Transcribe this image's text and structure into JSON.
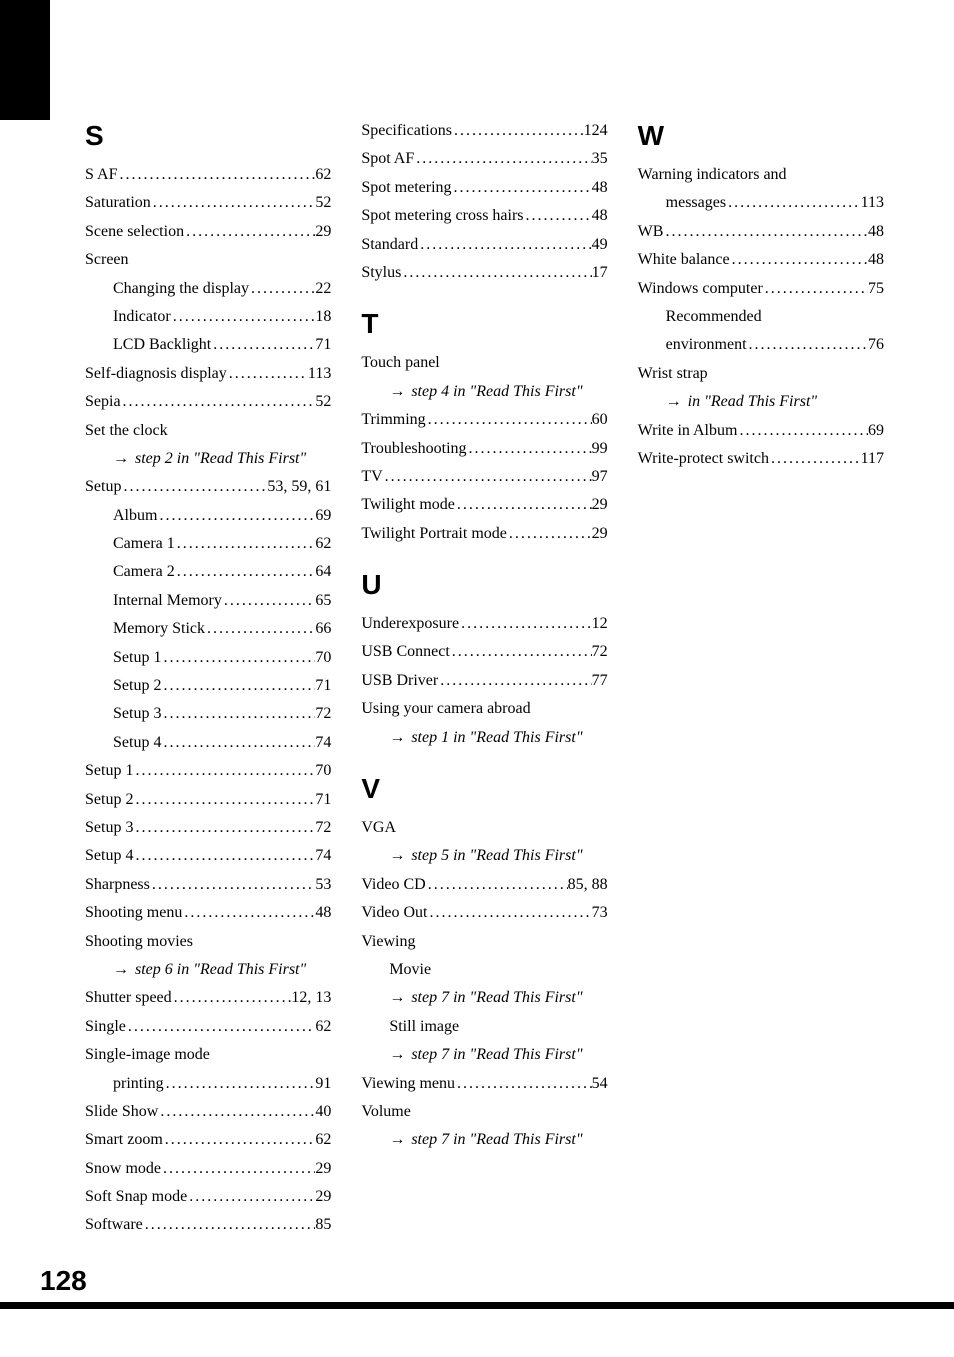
{
  "page_number": "128",
  "columns": [
    {
      "id": "col1",
      "sections": [
        {
          "header": "S",
          "entries": [
            {
              "type": "dot",
              "label": "S AF",
              "page": "62",
              "indent": 0
            },
            {
              "type": "dot",
              "label": "Saturation",
              "page": "52",
              "indent": 0
            },
            {
              "type": "dot",
              "label": "Scene selection",
              "page": "29",
              "indent": 0
            },
            {
              "type": "plain",
              "label": "Screen",
              "indent": 0
            },
            {
              "type": "dot",
              "label": "Changing the display",
              "page": "22",
              "indent": 1
            },
            {
              "type": "dot",
              "label": "Indicator",
              "page": "18",
              "indent": 1
            },
            {
              "type": "dot",
              "label": "LCD Backlight",
              "page": "71",
              "indent": 1
            },
            {
              "type": "dot",
              "label": "Self-diagnosis display",
              "page": "113",
              "indent": 0
            },
            {
              "type": "dot",
              "label": "Sepia",
              "page": "52",
              "indent": 0
            },
            {
              "type": "plain",
              "label": "Set the clock",
              "indent": 0
            },
            {
              "type": "arrow",
              "label": "step 2 in \"Read This First\"",
              "indent": 1
            },
            {
              "type": "dot",
              "label": "Setup",
              "page": "53, 59, 61",
              "indent": 0
            },
            {
              "type": "dot",
              "label": "Album",
              "page": "69",
              "indent": 1
            },
            {
              "type": "dot",
              "label": "Camera 1",
              "page": "62",
              "indent": 1
            },
            {
              "type": "dot",
              "label": "Camera 2",
              "page": "64",
              "indent": 1
            },
            {
              "type": "dot",
              "label": "Internal Memory",
              "page": "65",
              "indent": 1
            },
            {
              "type": "dot",
              "label": "Memory Stick",
              "page": "66",
              "indent": 1
            },
            {
              "type": "dot",
              "label": "Setup 1",
              "page": "70",
              "indent": 1
            },
            {
              "type": "dot",
              "label": "Setup 2",
              "page": "71",
              "indent": 1
            },
            {
              "type": "dot",
              "label": "Setup 3",
              "page": "72",
              "indent": 1
            },
            {
              "type": "dot",
              "label": "Setup 4",
              "page": "74",
              "indent": 1
            },
            {
              "type": "dot",
              "label": "Setup 1",
              "page": "70",
              "indent": 0
            },
            {
              "type": "dot",
              "label": "Setup 2",
              "page": "71",
              "indent": 0
            },
            {
              "type": "dot",
              "label": "Setup 3",
              "page": "72",
              "indent": 0
            },
            {
              "type": "dot",
              "label": "Setup 4",
              "page": "74",
              "indent": 0
            },
            {
              "type": "dot",
              "label": "Sharpness",
              "page": "53",
              "indent": 0
            },
            {
              "type": "dot",
              "label": "Shooting menu",
              "page": "48",
              "indent": 0
            },
            {
              "type": "plain",
              "label": "Shooting movies",
              "indent": 0
            },
            {
              "type": "arrow",
              "label": "step 6 in \"Read This First\"",
              "indent": 1
            },
            {
              "type": "dot",
              "label": "Shutter speed",
              "page": "12, 13",
              "indent": 0
            },
            {
              "type": "dot",
              "label": "Single",
              "page": "62",
              "indent": 0
            },
            {
              "type": "plain",
              "label": "Single-image mode",
              "indent": 0
            },
            {
              "type": "dot",
              "label": "printing",
              "page": "91",
              "indent": 1
            },
            {
              "type": "dot",
              "label": "Slide Show",
              "page": "40",
              "indent": 0
            },
            {
              "type": "dot",
              "label": "Smart zoom",
              "page": "62",
              "indent": 0
            },
            {
              "type": "dot",
              "label": "Snow mode",
              "page": "29",
              "indent": 0
            },
            {
              "type": "dot",
              "label": "Soft Snap mode",
              "page": "29",
              "indent": 0
            },
            {
              "type": "dot",
              "label": "Software",
              "page": "85",
              "indent": 0
            }
          ]
        }
      ]
    },
    {
      "id": "col2",
      "sections": [
        {
          "header": "",
          "entries": [
            {
              "type": "dot",
              "label": "Specifications",
              "page": "124",
              "indent": 0
            },
            {
              "type": "dot",
              "label": "Spot AF",
              "page": "35",
              "indent": 0
            },
            {
              "type": "dot",
              "label": "Spot metering",
              "page": "48",
              "indent": 0
            },
            {
              "type": "dot",
              "label": "Spot metering cross hairs",
              "page": "48",
              "indent": 0
            },
            {
              "type": "dot",
              "label": "Standard",
              "page": "49",
              "indent": 0
            },
            {
              "type": "dot",
              "label": "Stylus",
              "page": "17",
              "indent": 0
            }
          ]
        },
        {
          "header": "T",
          "entries": [
            {
              "type": "plain",
              "label": "Touch panel",
              "indent": 0
            },
            {
              "type": "arrow",
              "label": "step 4 in \"Read This First\"",
              "indent": 1
            },
            {
              "type": "dot",
              "label": "Trimming",
              "page": "60",
              "indent": 0
            },
            {
              "type": "dot",
              "label": "Troubleshooting",
              "page": "99",
              "indent": 0
            },
            {
              "type": "dot",
              "label": "TV",
              "page": "97",
              "indent": 0
            },
            {
              "type": "dot",
              "label": "Twilight mode",
              "page": "29",
              "indent": 0
            },
            {
              "type": "dot",
              "label": "Twilight Portrait mode",
              "page": "29",
              "indent": 0
            }
          ]
        },
        {
          "header": "U",
          "entries": [
            {
              "type": "dot",
              "label": "Underexposure",
              "page": "12",
              "indent": 0
            },
            {
              "type": "dot",
              "label": "USB Connect",
              "page": "72",
              "indent": 0
            },
            {
              "type": "dot",
              "label": "USB Driver",
              "page": "77",
              "indent": 0
            },
            {
              "type": "plain",
              "label": "Using your camera abroad",
              "indent": 0
            },
            {
              "type": "arrow",
              "label": "step 1 in \"Read This First\"",
              "indent": 1
            }
          ]
        },
        {
          "header": "V",
          "entries": [
            {
              "type": "plain",
              "label": "VGA",
              "indent": 0
            },
            {
              "type": "arrow",
              "label": "step 5 in \"Read This First\"",
              "indent": 1
            },
            {
              "type": "dot",
              "label": "Video CD",
              "page": "85, 88",
              "indent": 0
            },
            {
              "type": "dot",
              "label": "Video Out",
              "page": "73",
              "indent": 0
            },
            {
              "type": "plain",
              "label": "Viewing",
              "indent": 0
            },
            {
              "type": "plain",
              "label": "Movie",
              "indent": 1
            },
            {
              "type": "arrow",
              "label": "step 7 in \"Read This First\"",
              "indent": 1
            },
            {
              "type": "plain",
              "label": "Still image",
              "indent": 1
            },
            {
              "type": "arrow",
              "label": "step 7 in \"Read This First\"",
              "indent": 1
            },
            {
              "type": "dot",
              "label": "Viewing menu",
              "page": "54",
              "indent": 0
            },
            {
              "type": "plain",
              "label": "Volume",
              "indent": 0
            },
            {
              "type": "arrow",
              "label": "step 7 in \"Read This First\"",
              "indent": 1
            }
          ]
        }
      ]
    },
    {
      "id": "col3",
      "sections": [
        {
          "header": "W",
          "entries": [
            {
              "type": "plain",
              "label": "Warning indicators and",
              "indent": 0
            },
            {
              "type": "dot",
              "label": "messages",
              "page": "113",
              "indent": 1
            },
            {
              "type": "dot",
              "label": "WB",
              "page": "48",
              "indent": 0
            },
            {
              "type": "dot",
              "label": "White balance",
              "page": "48",
              "indent": 0
            },
            {
              "type": "dot",
              "label": "Windows computer",
              "page": "75",
              "indent": 0
            },
            {
              "type": "plain",
              "label": "Recommended",
              "indent": 1
            },
            {
              "type": "dot",
              "label": "environment",
              "page": "76",
              "indent": 1
            },
            {
              "type": "plain",
              "label": "Wrist strap",
              "indent": 0
            },
            {
              "type": "arrow",
              "label": "in \"Read This First\"",
              "indent": 1
            },
            {
              "type": "dot",
              "label": "Write in Album",
              "page": "69",
              "indent": 0
            },
            {
              "type": "dot",
              "label": "Write-protect switch",
              "page": "117",
              "indent": 0
            }
          ]
        }
      ]
    }
  ]
}
